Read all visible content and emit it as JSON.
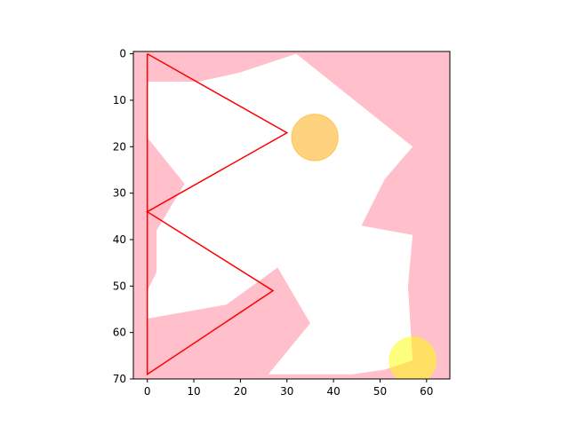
{
  "chart_data": {
    "type": "scatter",
    "title": "",
    "xlabel": "",
    "ylabel": "",
    "xlim": [
      -3,
      65
    ],
    "ylim": [
      70,
      -0.5
    ],
    "y_inverted": true,
    "grid": false,
    "x_ticks": [
      0,
      10,
      20,
      30,
      40,
      50,
      60
    ],
    "y_ticks": [
      0,
      10,
      20,
      30,
      40,
      50,
      60,
      70
    ],
    "colors": {
      "background_region": "#ffc0cb",
      "free_region": "#ffffff",
      "path": "#ff0000",
      "orange_circle": "#ffa500",
      "yellow_circle": "#ffff00"
    },
    "free_space_polygon": [
      [
        0,
        6
      ],
      [
        11,
        6
      ],
      [
        20,
        4
      ],
      [
        32,
        0
      ],
      [
        57,
        20
      ],
      [
        51,
        27
      ],
      [
        46,
        37
      ],
      [
        57,
        39
      ],
      [
        56,
        50
      ],
      [
        57,
        66
      ],
      [
        51,
        68
      ],
      [
        44,
        69
      ],
      [
        26,
        69
      ],
      [
        35,
        58
      ],
      [
        28,
        46
      ],
      [
        17,
        54
      ],
      [
        0,
        57
      ],
      [
        0,
        51
      ],
      [
        2,
        47
      ],
      [
        2,
        38
      ],
      [
        8,
        28
      ],
      [
        0,
        18
      ]
    ],
    "path_points": [
      [
        0,
        0
      ],
      [
        30,
        17
      ],
      [
        0,
        34
      ],
      [
        27,
        51
      ],
      [
        0,
        69
      ],
      [
        0,
        0
      ]
    ],
    "circles": [
      {
        "cx": 36,
        "cy": 18,
        "r": 5,
        "color": "#ffa500",
        "alpha": 0.5
      },
      {
        "cx": 57,
        "cy": 66,
        "r": 5,
        "color": "#ffff00",
        "alpha": 0.5
      }
    ]
  }
}
